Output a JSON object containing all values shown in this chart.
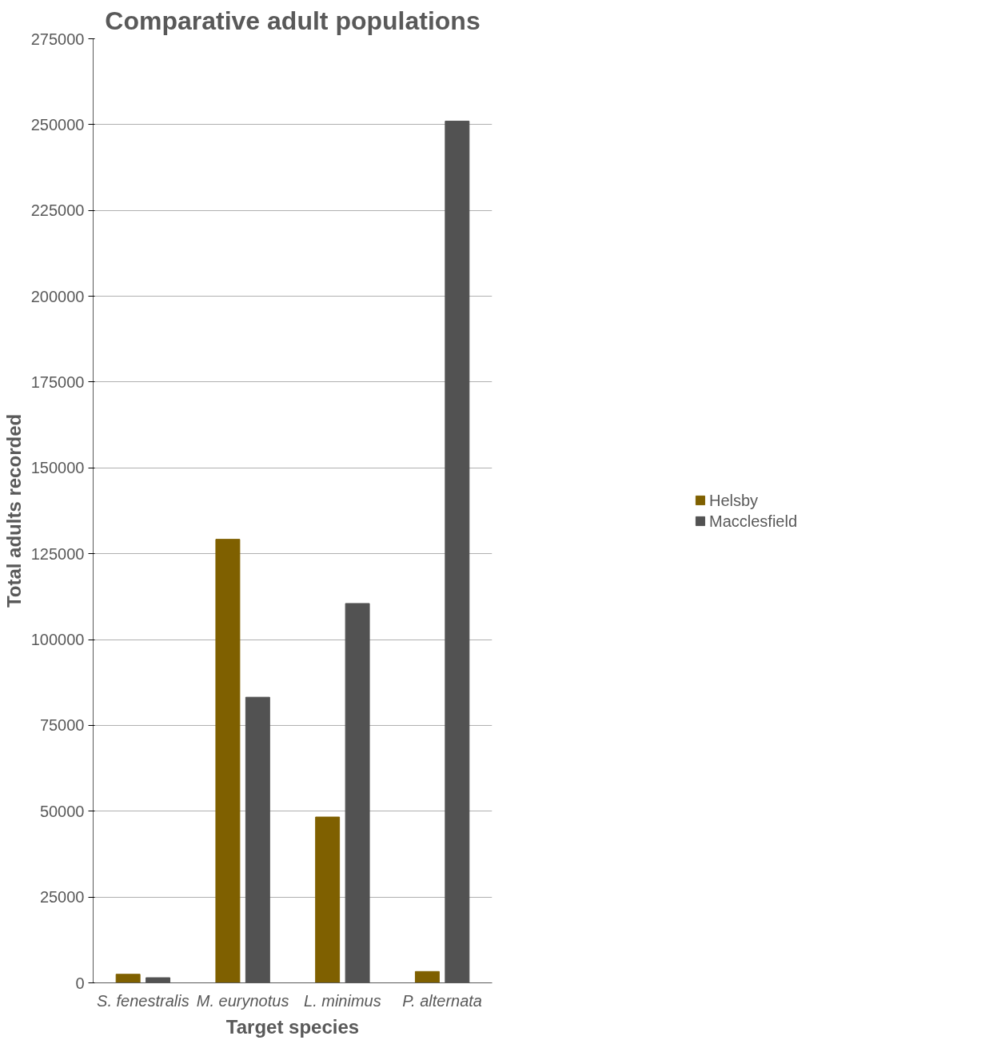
{
  "chart_data": {
    "type": "bar",
    "title": "Comparative adult populations",
    "xlabel": "Target species",
    "ylabel": "Total adults recorded",
    "categories": [
      "S. fenestralis",
      "M. eurynotus",
      "L. minimus",
      "P. alternata"
    ],
    "series": [
      {
        "name": "Helsby",
        "color": "#7f6000",
        "values": [
          2500,
          129200,
          48300,
          3300
        ]
      },
      {
        "name": "Macclesfield",
        "color": "#525252",
        "values": [
          1500,
          83200,
          110500,
          251000
        ]
      }
    ],
    "ylim": [
      0,
      275000
    ],
    "yticks": [
      0,
      25000,
      50000,
      75000,
      100000,
      125000,
      150000,
      175000,
      200000,
      225000,
      250000,
      275000
    ],
    "grid": "y",
    "legend": "right"
  }
}
